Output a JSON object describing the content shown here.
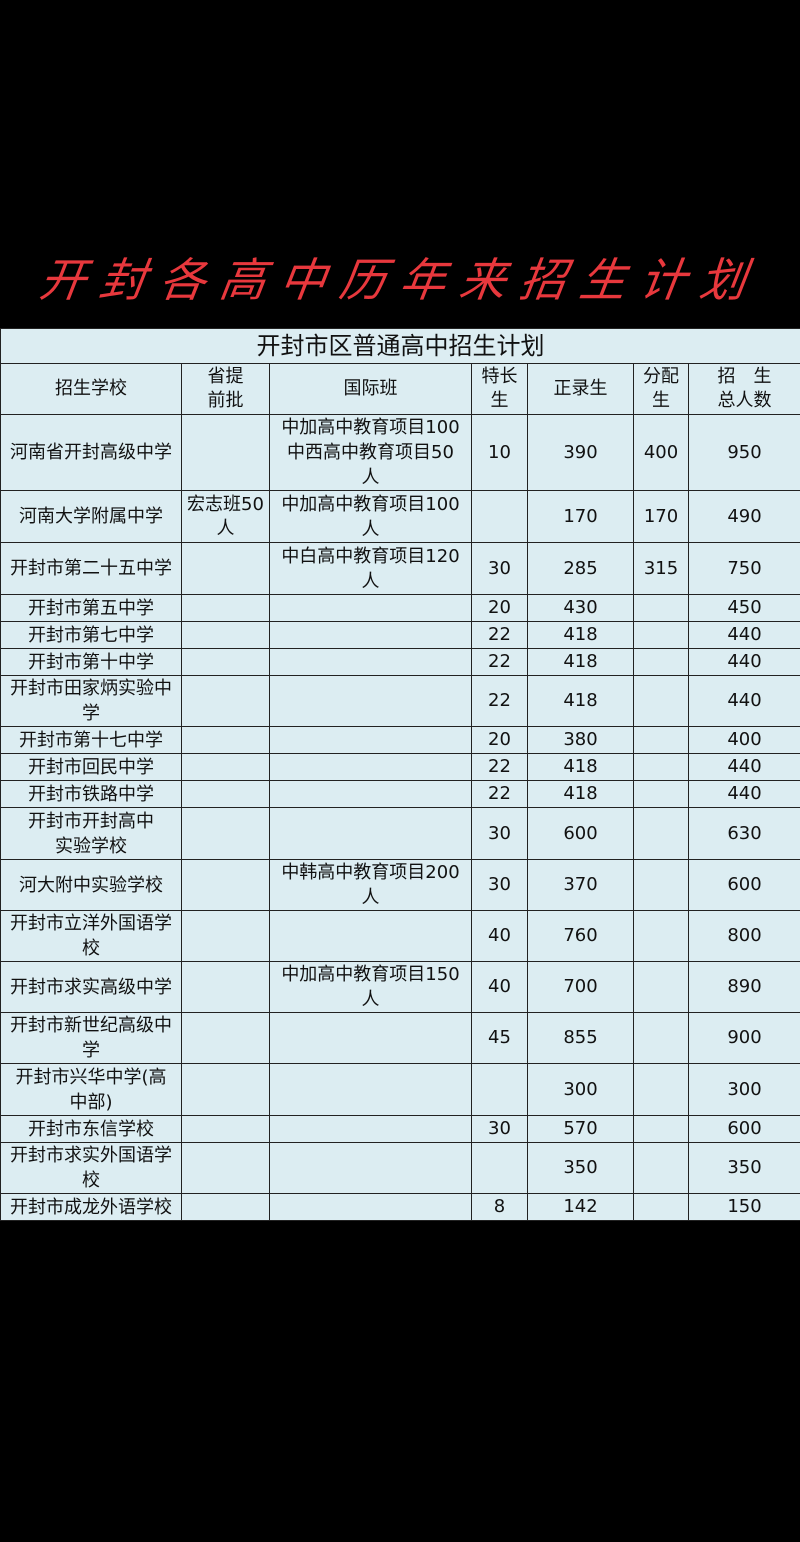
{
  "banner": "开封各高中历年来招生计划",
  "table": {
    "title": "开封市区普通高中招生计划",
    "headers": [
      "招生学校",
      "省提\n前批",
      "国际班",
      "特长\n生",
      "正录生",
      "分配\n生",
      "招　生\n总人数"
    ],
    "rows": [
      [
        "河南省开封高级中学",
        "",
        "中加高中教育项目100\n中西高中教育项目50\n人",
        "10",
        "390",
        "400",
        "950"
      ],
      [
        "河南大学附属中学",
        "宏志班50\n人",
        "中加高中教育项目100\n人",
        "",
        "170",
        "170",
        "490"
      ],
      [
        "开封市第二十五中学",
        "",
        "中白高中教育项目120\n人",
        "30",
        "285",
        "315",
        "750"
      ],
      [
        "开封市第五中学",
        "",
        "",
        "20",
        "430",
        "",
        "450"
      ],
      [
        "开封市第七中学",
        "",
        "",
        "22",
        "418",
        "",
        "440"
      ],
      [
        "开封市第十中学",
        "",
        "",
        "22",
        "418",
        "",
        "440"
      ],
      [
        "开封市田家炳实验中\n学",
        "",
        "",
        "22",
        "418",
        "",
        "440"
      ],
      [
        "开封市第十七中学",
        "",
        "",
        "20",
        "380",
        "",
        "400"
      ],
      [
        "开封市回民中学",
        "",
        "",
        "22",
        "418",
        "",
        "440"
      ],
      [
        "开封市铁路中学",
        "",
        "",
        "22",
        "418",
        "",
        "440"
      ],
      [
        "开封市开封高中\n实验学校",
        "",
        "",
        "30",
        "600",
        "",
        "630"
      ],
      [
        "河大附中实验学校",
        "",
        "中韩高中教育项目200\n人",
        "30",
        "370",
        "",
        "600"
      ],
      [
        "开封市立洋外国语学\n校",
        "",
        "",
        "40",
        "760",
        "",
        "800"
      ],
      [
        "开封市求实高级中学",
        "",
        "中加高中教育项目150\n人",
        "40",
        "700",
        "",
        "890"
      ],
      [
        "开封市新世纪高级中\n学",
        "",
        "",
        "45",
        "855",
        "",
        "900"
      ],
      [
        "开封市兴华中学(高\n中部)",
        "",
        "",
        "",
        "300",
        "",
        "300"
      ],
      [
        "开封市东信学校",
        "",
        "",
        "30",
        "570",
        "",
        "600"
      ],
      [
        "开封市求实外国语学\n校",
        "",
        "",
        "",
        "350",
        "",
        "350"
      ],
      [
        "开封市成龙外语学校",
        "",
        "",
        "8",
        "142",
        "",
        "150"
      ]
    ]
  }
}
